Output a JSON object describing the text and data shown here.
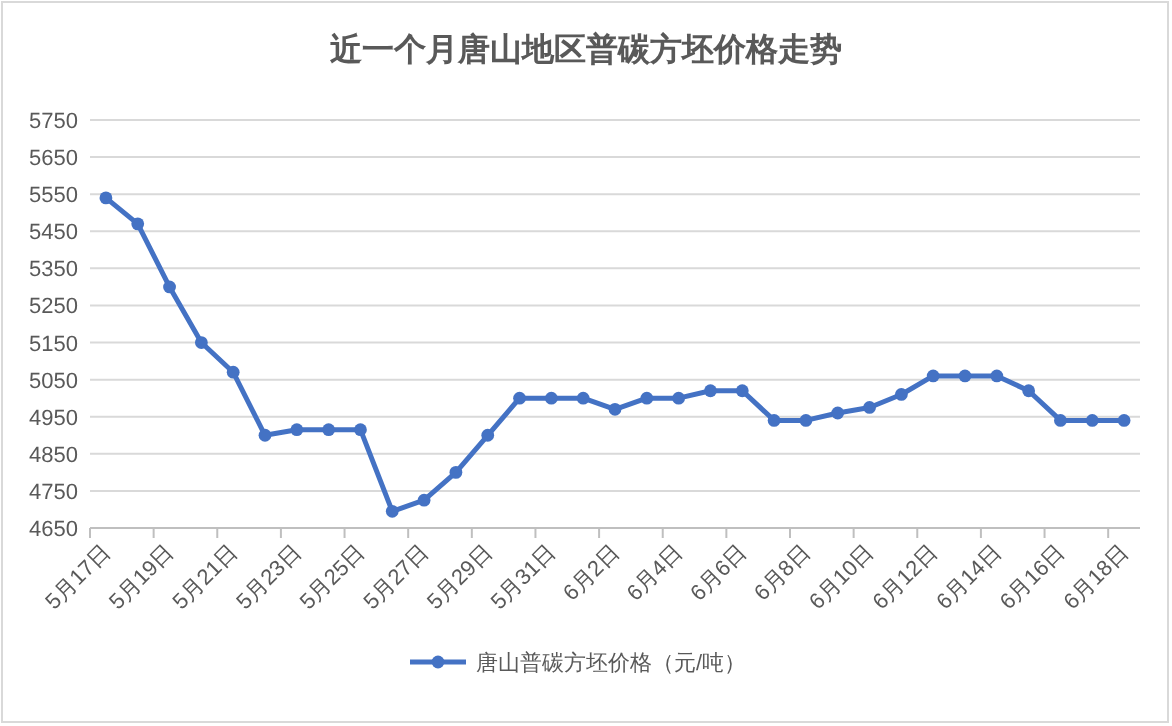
{
  "chart_data": {
    "type": "line",
    "title": "近一个月唐山地区普碳方坯价格走势",
    "categories": [
      "5月17日",
      null,
      "5月19日",
      null,
      "5月21日",
      null,
      "5月23日",
      null,
      "5月25日",
      null,
      "5月27日",
      null,
      "5月29日",
      null,
      "5月31日",
      null,
      "6月2日",
      null,
      "6月4日",
      null,
      "6月6日",
      null,
      "6月8日",
      null,
      "6月10日",
      null,
      "6月12日",
      null,
      "6月14日",
      null,
      "6月16日",
      null,
      "6月18日"
    ],
    "series": [
      {
        "name": "唐山普碳方坯价格（元/吨）",
        "color": "#4472c4",
        "values": [
          5540,
          5470,
          5300,
          5150,
          5070,
          4900,
          4915,
          4915,
          4915,
          4695,
          4725,
          4800,
          4900,
          5000,
          5000,
          5000,
          4970,
          5000,
          5000,
          5020,
          5020,
          4940,
          4940,
          4960,
          4975,
          5010,
          5060,
          5060,
          5060,
          5020,
          4940,
          4940,
          4940
        ]
      }
    ],
    "ylim": [
      4650,
      5750
    ],
    "yticks": [
      4650,
      4750,
      4850,
      4950,
      5050,
      5150,
      5250,
      5350,
      5450,
      5550,
      5650,
      5750
    ],
    "grid": "y",
    "legend": "bottom",
    "marker": "circle",
    "line_style": "solid"
  }
}
